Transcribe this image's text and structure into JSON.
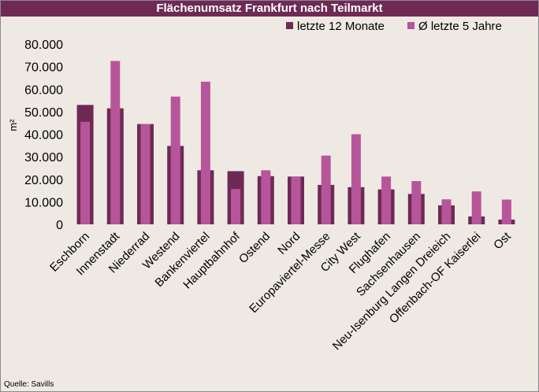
{
  "chart_data": {
    "type": "bar",
    "title": "Flächenumsatz Frankfurt nach Teilmarkt",
    "ylabel": "m²",
    "xlabel": "",
    "ylim": [
      0,
      80000
    ],
    "yticks": [
      "0",
      "10.000",
      "20.000",
      "30.000",
      "40.000",
      "50.000",
      "60.000",
      "70.000",
      "80.000"
    ],
    "grid": false,
    "legend_position": "top-right",
    "categories": [
      "Eschborn",
      "Innenstadt",
      "Niederrad",
      "Westend",
      "Bankenviertel",
      "Hauptbahnhof",
      "Ostend",
      "Nord",
      "Europaviertel-Messe",
      "City West",
      "Flughafen",
      "Sachsenhausen",
      "Neu-Isenburg Langen Dreieich",
      "Offenbach-OF Kaiserlei",
      "Ost"
    ],
    "series": [
      {
        "name": "letzte 12 Monate",
        "color": "#6e2a55",
        "values": [
          53000,
          51500,
          44500,
          34800,
          24000,
          23600,
          21400,
          21200,
          17500,
          16500,
          15500,
          13500,
          8400,
          3500,
          2100
        ]
      },
      {
        "name": "Ø letzte 5 Jahre",
        "color": "#b7559a",
        "values": [
          45500,
          72500,
          44500,
          56700,
          63300,
          15700,
          24000,
          21200,
          30500,
          40000,
          21200,
          19200,
          11100,
          14600,
          11000
        ]
      }
    ],
    "source": "Quelle: Savills"
  }
}
